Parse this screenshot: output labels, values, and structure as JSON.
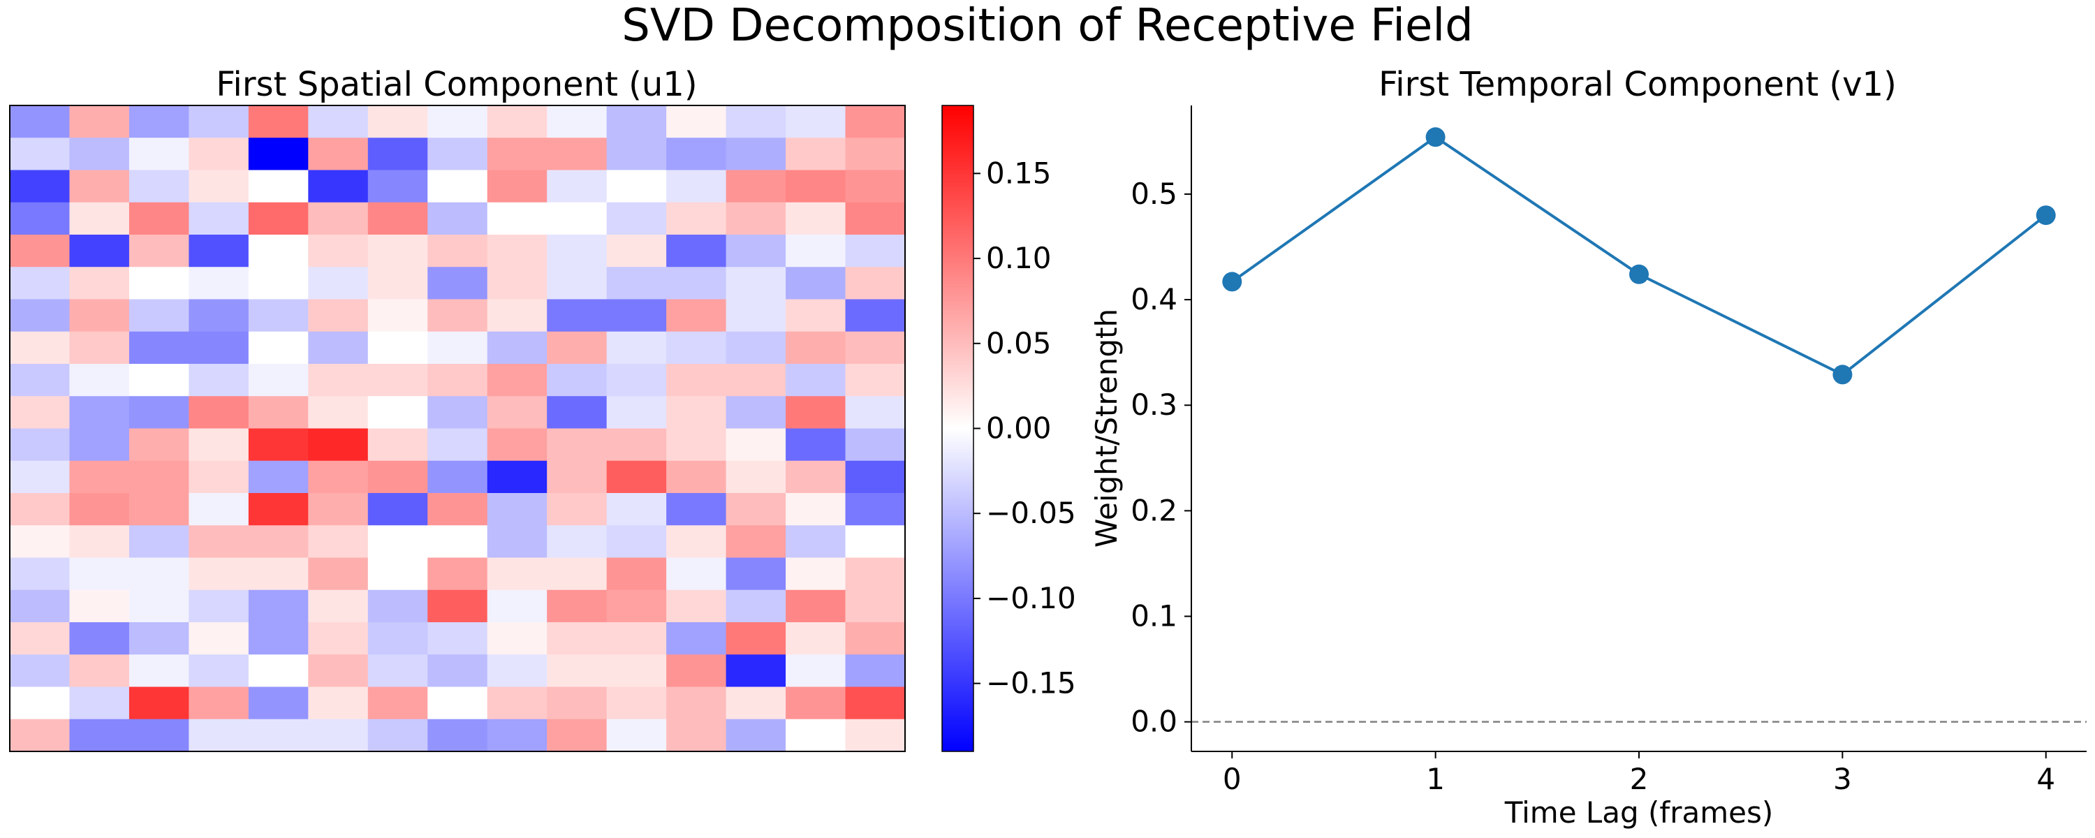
{
  "figure": {
    "title": "SVD Decomposition of Receptive Field"
  },
  "chart_data": [
    {
      "type": "heatmap",
      "title": "First Spatial Component (u1)",
      "colormap": "bwr",
      "vmin": -0.19,
      "vmax": 0.19,
      "grid": false,
      "axes_visible": false,
      "colorbar": {
        "ticks": [
          "0.15",
          "0.10",
          "0.05",
          "0.00",
          "−0.05",
          "−0.10",
          "−0.15"
        ],
        "tick_values": [
          0.15,
          0.1,
          0.05,
          0.0,
          -0.05,
          -0.1,
          -0.15
        ]
      },
      "values": [
        [
          -0.08,
          0.06,
          -0.07,
          -0.04,
          0.1,
          -0.03,
          0.02,
          -0.01,
          0.03,
          -0.01,
          -0.05,
          0.01,
          -0.03,
          -0.02,
          0.08
        ],
        [
          -0.03,
          -0.05,
          -0.01,
          0.03,
          -0.19,
          0.07,
          -0.12,
          -0.04,
          0.07,
          0.07,
          -0.05,
          -0.07,
          -0.06,
          0.04,
          0.06
        ],
        [
          -0.14,
          0.06,
          -0.03,
          0.02,
          0.0,
          -0.15,
          -0.09,
          0.0,
          0.08,
          -0.02,
          0.0,
          -0.02,
          0.08,
          0.09,
          0.08
        ],
        [
          -0.1,
          0.02,
          0.09,
          -0.03,
          0.11,
          0.05,
          0.09,
          -0.05,
          0.0,
          0.0,
          -0.03,
          0.03,
          0.05,
          0.02,
          0.09
        ],
        [
          0.08,
          -0.14,
          0.05,
          -0.13,
          0.0,
          0.03,
          0.02,
          0.04,
          0.03,
          -0.02,
          0.02,
          -0.11,
          -0.05,
          -0.01,
          -0.03
        ],
        [
          -0.03,
          0.03,
          0.0,
          -0.01,
          0.0,
          -0.02,
          0.02,
          -0.08,
          0.03,
          -0.02,
          -0.04,
          -0.04,
          -0.02,
          -0.06,
          0.04
        ],
        [
          -0.06,
          0.06,
          -0.04,
          -0.08,
          -0.04,
          0.04,
          0.01,
          0.05,
          0.02,
          -0.1,
          -0.1,
          0.07,
          -0.02,
          0.03,
          -0.11
        ],
        [
          0.02,
          0.04,
          -0.09,
          -0.09,
          0.0,
          -0.05,
          0.0,
          -0.01,
          -0.05,
          0.06,
          -0.02,
          -0.03,
          -0.04,
          0.06,
          0.05
        ],
        [
          -0.04,
          -0.01,
          0.0,
          -0.03,
          -0.01,
          0.03,
          0.03,
          0.04,
          0.07,
          -0.04,
          -0.03,
          0.04,
          0.04,
          -0.04,
          0.03
        ],
        [
          0.03,
          -0.07,
          -0.08,
          0.09,
          0.06,
          0.02,
          0.0,
          -0.05,
          0.05,
          -0.11,
          -0.02,
          0.03,
          -0.05,
          0.1,
          -0.02
        ],
        [
          -0.04,
          -0.07,
          0.06,
          0.02,
          0.15,
          0.16,
          0.03,
          -0.03,
          0.07,
          0.05,
          0.05,
          0.03,
          0.01,
          -0.11,
          -0.05
        ],
        [
          -0.02,
          0.07,
          0.07,
          0.03,
          -0.07,
          0.07,
          0.08,
          -0.08,
          -0.16,
          0.05,
          0.12,
          0.06,
          0.02,
          0.05,
          -0.12
        ],
        [
          0.04,
          0.08,
          0.07,
          -0.01,
          0.15,
          0.06,
          -0.12,
          0.08,
          -0.05,
          0.04,
          -0.02,
          -0.1,
          0.05,
          0.01,
          -0.1
        ],
        [
          0.01,
          0.02,
          -0.04,
          0.05,
          0.05,
          0.03,
          0.0,
          0.0,
          -0.05,
          -0.02,
          -0.03,
          0.02,
          0.07,
          -0.04,
          0.0
        ],
        [
          -0.03,
          -0.01,
          -0.01,
          0.02,
          0.02,
          0.06,
          0.0,
          0.07,
          0.02,
          0.02,
          0.08,
          -0.01,
          -0.09,
          0.01,
          0.04
        ],
        [
          -0.05,
          0.01,
          -0.01,
          -0.03,
          -0.07,
          0.02,
          -0.05,
          0.12,
          -0.01,
          0.08,
          0.07,
          0.03,
          -0.04,
          0.09,
          0.04
        ],
        [
          0.03,
          -0.09,
          -0.05,
          0.01,
          -0.07,
          0.03,
          -0.04,
          -0.03,
          0.01,
          0.03,
          0.03,
          -0.07,
          0.1,
          0.02,
          0.06
        ],
        [
          -0.04,
          0.04,
          -0.01,
          -0.03,
          0.0,
          0.05,
          -0.03,
          -0.05,
          -0.02,
          0.02,
          0.02,
          0.08,
          -0.16,
          -0.01,
          -0.07
        ],
        [
          0.0,
          -0.03,
          0.15,
          0.07,
          -0.08,
          0.02,
          0.07,
          0.0,
          0.04,
          0.05,
          0.03,
          0.05,
          0.02,
          0.08,
          0.13
        ],
        [
          0.05,
          -0.09,
          -0.09,
          -0.02,
          -0.02,
          -0.02,
          -0.04,
          -0.08,
          -0.07,
          0.07,
          -0.01,
          0.05,
          -0.06,
          0.0,
          0.02
        ]
      ]
    },
    {
      "type": "line",
      "title": "First Temporal Component (v1)",
      "xlabel": "Time Lag (frames)",
      "ylabel": "Weight/Strength",
      "x": [
        0,
        1,
        2,
        3,
        4
      ],
      "y": [
        0.417,
        0.554,
        0.424,
        0.329,
        0.48
      ],
      "xlim": [
        -0.2,
        4.2
      ],
      "ylim": [
        -0.028,
        0.584
      ],
      "xticks": [
        0,
        1,
        2,
        3,
        4
      ],
      "yticks": [
        0.0,
        0.1,
        0.2,
        0.3,
        0.4,
        0.5
      ],
      "ytick_labels": [
        "0.0",
        "0.1",
        "0.2",
        "0.3",
        "0.4",
        "0.5"
      ],
      "reference_line": {
        "y": 0.0,
        "style": "dashed",
        "color": "#808080"
      },
      "series_color": "#1f77b4",
      "grid": false
    }
  ]
}
